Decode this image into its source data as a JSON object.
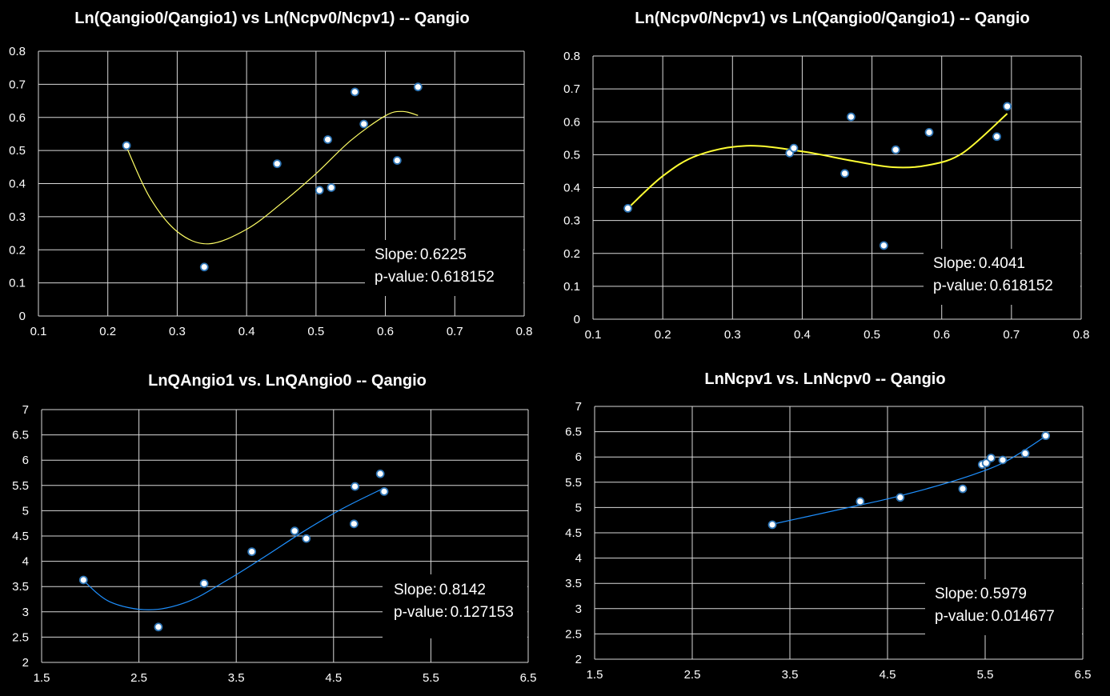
{
  "chart_data": [
    {
      "type": "scatter",
      "title": "Ln(Qangio0/Qangio1) vs Ln(Ncpv0/Ncpv1)  -- Qangio",
      "xlim": [
        0.1,
        0.8
      ],
      "ylim": [
        0,
        0.8
      ],
      "xticks": [
        "0.1",
        "0.2",
        "0.3",
        "0.4",
        "0.5",
        "0.6",
        "0.7",
        "0.8"
      ],
      "yticks": [
        "0",
        "0.1",
        "0.2",
        "0.3",
        "0.4",
        "0.5",
        "0.6",
        "0.7",
        "0.8"
      ],
      "xstep": 0.1,
      "ystep": 0.1,
      "grid": true,
      "points": [
        {
          "x": 0.227,
          "y": 0.515
        },
        {
          "x": 0.339,
          "y": 0.148
        },
        {
          "x": 0.444,
          "y": 0.46
        },
        {
          "x": 0.505,
          "y": 0.38
        },
        {
          "x": 0.517,
          "y": 0.533
        },
        {
          "x": 0.522,
          "y": 0.388
        },
        {
          "x": 0.556,
          "y": 0.677
        },
        {
          "x": 0.569,
          "y": 0.58
        },
        {
          "x": 0.617,
          "y": 0.47
        },
        {
          "x": 0.647,
          "y": 0.692
        }
      ],
      "trendline": {
        "type": "polynomial-3",
        "color": "#ffff66",
        "points": [
          {
            "x": 0.227,
            "y": 0.51
          },
          {
            "x": 0.26,
            "y": 0.36
          },
          {
            "x": 0.3,
            "y": 0.255
          },
          {
            "x": 0.345,
            "y": 0.218
          },
          {
            "x": 0.4,
            "y": 0.262
          },
          {
            "x": 0.45,
            "y": 0.34
          },
          {
            "x": 0.5,
            "y": 0.43
          },
          {
            "x": 0.55,
            "y": 0.53
          },
          {
            "x": 0.6,
            "y": 0.605
          },
          {
            "x": 0.625,
            "y": 0.618
          },
          {
            "x": 0.647,
            "y": 0.606
          }
        ]
      },
      "slope_label": "Slope:",
      "slope": "0.6225",
      "pvalue_label": "p-value:",
      "pvalue": "0.618152"
    },
    {
      "type": "scatter",
      "title": "Ln(Ncpv0/Ncpv1) vs Ln(Qangio0/Qangio1)  -- Qangio",
      "xlim": [
        0.1,
        0.8
      ],
      "ylim": [
        0,
        0.8
      ],
      "xticks": [
        "0.1",
        "0.2",
        "0.3",
        "0.4",
        "0.5",
        "0.6",
        "0.7",
        "0.8"
      ],
      "yticks": [
        "0",
        "0.1",
        "0.2",
        "0.3",
        "0.4",
        "0.5",
        "0.6",
        "0.7",
        "0.8"
      ],
      "xstep": 0.1,
      "ystep": 0.1,
      "grid": true,
      "points": [
        {
          "x": 0.15,
          "y": 0.337
        },
        {
          "x": 0.382,
          "y": 0.505
        },
        {
          "x": 0.388,
          "y": 0.52
        },
        {
          "x": 0.461,
          "y": 0.443
        },
        {
          "x": 0.47,
          "y": 0.615
        },
        {
          "x": 0.517,
          "y": 0.224
        },
        {
          "x": 0.534,
          "y": 0.515
        },
        {
          "x": 0.582,
          "y": 0.568
        },
        {
          "x": 0.679,
          "y": 0.555
        },
        {
          "x": 0.694,
          "y": 0.647
        }
      ],
      "trendline": {
        "type": "polynomial-3",
        "color": "#ffff33",
        "points": [
          {
            "x": 0.15,
            "y": 0.337
          },
          {
            "x": 0.2,
            "y": 0.435
          },
          {
            "x": 0.25,
            "y": 0.498
          },
          {
            "x": 0.32,
            "y": 0.527
          },
          {
            "x": 0.4,
            "y": 0.51
          },
          {
            "x": 0.47,
            "y": 0.482
          },
          {
            "x": 0.53,
            "y": 0.462
          },
          {
            "x": 0.58,
            "y": 0.468
          },
          {
            "x": 0.63,
            "y": 0.505
          },
          {
            "x": 0.694,
            "y": 0.625
          }
        ]
      },
      "slope_label": "Slope:",
      "slope": "0.4041",
      "pvalue_label": "p-value:",
      "pvalue": "0.618152"
    },
    {
      "type": "scatter",
      "title": "LnQAngio1 vs. LnQAngio0  -- Qangio",
      "xlim": [
        1.5,
        6.5
      ],
      "ylim": [
        2,
        7
      ],
      "xticks": [
        "1.5",
        "2.5",
        "3.5",
        "4.5",
        "5.5",
        "6.5"
      ],
      "yticks": [
        "2",
        "2.5",
        "3",
        "3.5",
        "4",
        "4.5",
        "5",
        "5.5",
        "6",
        "6.5",
        "7"
      ],
      "xstep": 1,
      "ystep": 0.5,
      "grid": true,
      "points": [
        {
          "x": 1.93,
          "y": 3.63
        },
        {
          "x": 2.7,
          "y": 2.7
        },
        {
          "x": 3.17,
          "y": 3.56
        },
        {
          "x": 3.66,
          "y": 4.19
        },
        {
          "x": 4.1,
          "y": 4.6
        },
        {
          "x": 4.22,
          "y": 4.45
        },
        {
          "x": 4.71,
          "y": 4.74
        },
        {
          "x": 4.72,
          "y": 5.48
        },
        {
          "x": 4.98,
          "y": 5.73
        },
        {
          "x": 5.02,
          "y": 5.38
        }
      ],
      "trendline": {
        "type": "polynomial-3",
        "color": "#1e90ff",
        "points": [
          {
            "x": 1.93,
            "y": 3.62
          },
          {
            "x": 2.2,
            "y": 3.2
          },
          {
            "x": 2.6,
            "y": 3.04
          },
          {
            "x": 3.0,
            "y": 3.2
          },
          {
            "x": 3.4,
            "y": 3.62
          },
          {
            "x": 3.8,
            "y": 4.1
          },
          {
            "x": 4.2,
            "y": 4.6
          },
          {
            "x": 4.6,
            "y": 5.05
          },
          {
            "x": 5.02,
            "y": 5.45
          }
        ]
      },
      "slope_label": "Slope:",
      "slope": "0.8142",
      "pvalue_label": "p-value:",
      "pvalue": "0.127153"
    },
    {
      "type": "scatter",
      "title": "LnNcpv1 vs. LnNcpv0  -- Qangio",
      "xlim": [
        1.5,
        6.5
      ],
      "ylim": [
        2,
        7
      ],
      "xticks": [
        "1.5",
        "2.5",
        "3.5",
        "4.5",
        "5.5",
        "6.5"
      ],
      "yticks": [
        "2",
        "2.5",
        "3",
        "3.5",
        "4",
        "4.5",
        "5",
        "5.5",
        "6",
        "6.5",
        "7"
      ],
      "xstep": 1,
      "ystep": 0.5,
      "grid": true,
      "points": [
        {
          "x": 3.32,
          "y": 4.66
        },
        {
          "x": 4.22,
          "y": 5.12
        },
        {
          "x": 4.63,
          "y": 5.2
        },
        {
          "x": 5.27,
          "y": 5.37
        },
        {
          "x": 5.47,
          "y": 5.85
        },
        {
          "x": 5.51,
          "y": 5.88
        },
        {
          "x": 5.56,
          "y": 5.98
        },
        {
          "x": 5.68,
          "y": 5.94
        },
        {
          "x": 5.91,
          "y": 6.07
        },
        {
          "x": 6.12,
          "y": 6.42
        }
      ],
      "trendline": {
        "type": "polynomial-3",
        "color": "#1e90ff",
        "points": [
          {
            "x": 3.32,
            "y": 4.67
          },
          {
            "x": 3.7,
            "y": 4.83
          },
          {
            "x": 4.1,
            "y": 5.0
          },
          {
            "x": 4.5,
            "y": 5.17
          },
          {
            "x": 4.9,
            "y": 5.37
          },
          {
            "x": 5.3,
            "y": 5.6
          },
          {
            "x": 5.7,
            "y": 5.9
          },
          {
            "x": 6.12,
            "y": 6.41
          }
        ]
      },
      "slope_label": "Slope:",
      "slope": "0.5979",
      "pvalue_label": "p-value:",
      "pvalue": "0.014677"
    }
  ]
}
